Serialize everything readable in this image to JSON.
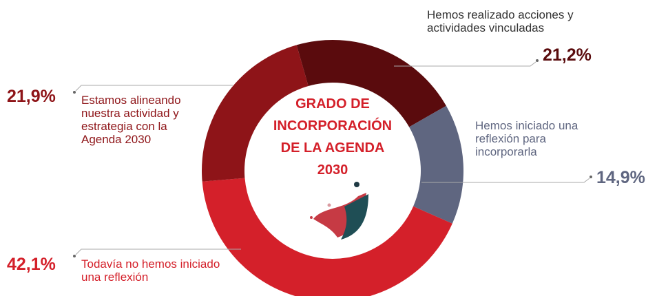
{
  "chart_data": {
    "type": "pie",
    "donut": true,
    "title": [
      "GRADO DE",
      "INCORPORACIÓN",
      "DE LA AGENDA",
      "2030"
    ],
    "categories": [
      "Hemos realizado acciones y actividades vinculadas",
      "Hemos iniciado una reflexión para incorporarla",
      "Todavía no hemos iniciado una reflexión",
      "Estamos alineando nuestra actividad y estrategia con la Agenda 2030"
    ],
    "values": [
      21.2,
      14.9,
      42.1,
      21.9
    ],
    "value_labels": [
      "21,2%",
      "14,9%",
      "42,1%",
      "21,9%"
    ],
    "colors": [
      "#5a0b0d",
      "#5f6680",
      "#d4202a",
      "#8e1418"
    ]
  }
}
